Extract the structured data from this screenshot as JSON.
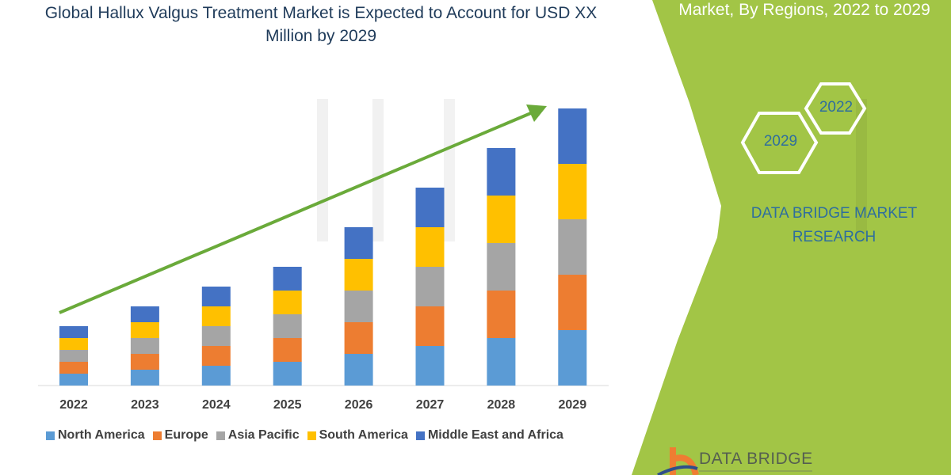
{
  "header": {
    "title": "Global Hallux Valgus Treatment Market is Expected to Account for USD XX Million by 2029",
    "subtitle": "Market, By Regions, 2022 to 2029"
  },
  "side_panel": {
    "hex_years": [
      "2029",
      "2022"
    ],
    "brand_text": "DATA BRIDGE MARKET RESEARCH",
    "logo_text": "DATA BRIDGE",
    "panel_color": "#a2c546"
  },
  "chart_data": {
    "type": "bar",
    "stacked": true,
    "categories": [
      "2022",
      "2023",
      "2024",
      "2025",
      "2026",
      "2027",
      "2028",
      "2029"
    ],
    "series": [
      {
        "name": "North America",
        "color": "#5b9bd5",
        "values": [
          3,
          4,
          5,
          6,
          8,
          10,
          12,
          14
        ]
      },
      {
        "name": "Europe",
        "color": "#ed7d31",
        "values": [
          3,
          4,
          5,
          6,
          8,
          10,
          12,
          14
        ]
      },
      {
        "name": "Asia Pacific",
        "color": "#a5a5a5",
        "values": [
          3,
          4,
          5,
          6,
          8,
          10,
          12,
          14
        ]
      },
      {
        "name": "South America",
        "color": "#ffc000",
        "values": [
          3,
          4,
          5,
          6,
          8,
          10,
          12,
          14
        ]
      },
      {
        "name": "Middle East and Africa",
        "color": "#4472c4",
        "values": [
          3,
          4,
          5,
          6,
          8,
          10,
          12,
          14
        ]
      }
    ],
    "y_axis_shown": false,
    "grid": false,
    "legend_position": "bottom",
    "trend_arrow_color": "#6aaa3a"
  }
}
